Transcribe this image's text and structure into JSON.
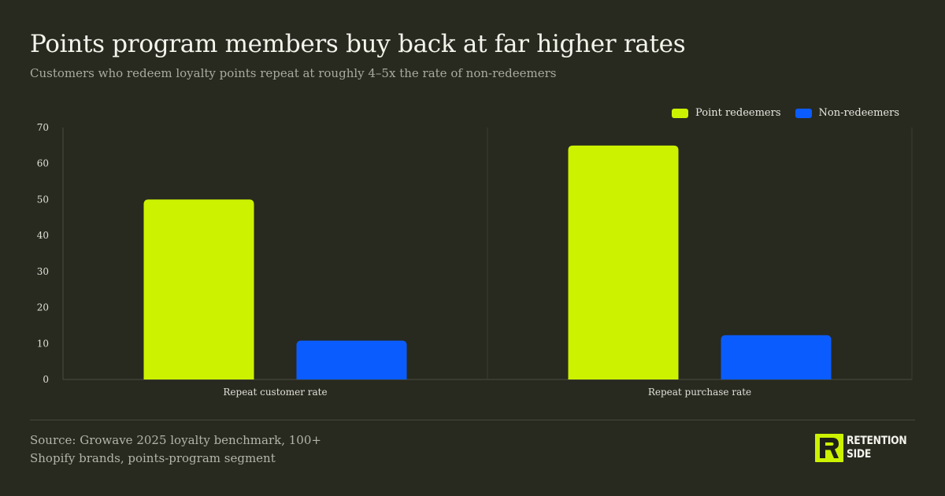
{
  "header": {
    "title": "Points program members buy back at far higher rates",
    "subtitle": "Customers who redeem loyalty points repeat at roughly 4–5x the rate of non-redeemers"
  },
  "chart_data": {
    "type": "bar",
    "categories": [
      "Repeat customer rate",
      "Repeat purchase rate"
    ],
    "series": [
      {
        "name": "Point redeemers",
        "values": [
          50,
          65
        ],
        "color": "#ccf200"
      },
      {
        "name": "Non-redeemers",
        "values": [
          10.8,
          12.3
        ],
        "color": "#0b5cff"
      }
    ],
    "ylim": [
      0,
      70
    ],
    "yticks": [
      0,
      10,
      20,
      30,
      40,
      50,
      60,
      70
    ],
    "xlabel": "",
    "ylabel": "",
    "grid": false,
    "legend_position": "top-right"
  },
  "footer": {
    "source_line1": "Source: Growave 2025 loyalty benchmark, 100+",
    "source_line2": "Shopify brands, points-program segment"
  },
  "brand": {
    "name_line1": "RETENTION",
    "name_line2": "SIDE",
    "mark_color": "#ccf200",
    "mark_ink": "#1f2118",
    "logo_icon": "retention-side-logo-icon"
  }
}
